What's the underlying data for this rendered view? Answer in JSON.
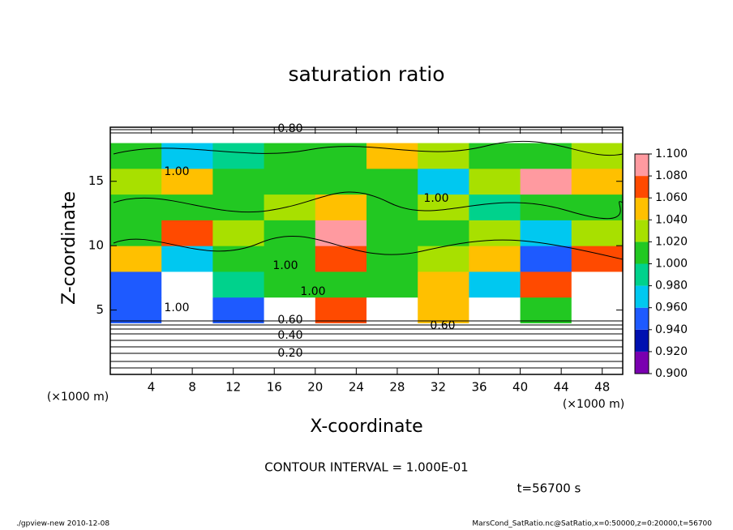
{
  "chart_data": {
    "type": "heatmap",
    "title": "saturation ratio",
    "xlabel": "X-coordinate",
    "ylabel": "Z-coordinate",
    "x_unit": "(×1000 m)",
    "xlim": [
      0,
      50
    ],
    "ylim": [
      0,
      19.2
    ],
    "xticks": [
      4,
      8,
      12,
      16,
      20,
      24,
      28,
      32,
      36,
      40,
      44,
      48
    ],
    "yticks": [
      5,
      10,
      15
    ],
    "x_edges": [
      0,
      5,
      10,
      15,
      20,
      25,
      30,
      35,
      40,
      45,
      50
    ],
    "z_edges": [
      0,
      2,
      4,
      6,
      8,
      10,
      12,
      14,
      16,
      18,
      20
    ],
    "values": [
      [
        0.2,
        0.2,
        0.2,
        0.2,
        0.2,
        0.2,
        0.2,
        0.2,
        0.2,
        0.2
      ],
      [
        0.5,
        0.5,
        0.5,
        0.5,
        0.5,
        0.5,
        0.5,
        0.5,
        0.5,
        0.5
      ],
      [
        0.95,
        1.12,
        0.94,
        1.12,
        1.06,
        1.12,
        1.04,
        1.12,
        1.0,
        1.12
      ],
      [
        0.94,
        1.12,
        0.98,
        1.0,
        1.0,
        1.0,
        1.04,
        0.96,
        1.06,
        1.12
      ],
      [
        1.04,
        0.96,
        1.0,
        1.0,
        1.06,
        1.0,
        1.02,
        1.04,
        0.94,
        1.06
      ],
      [
        1.0,
        1.06,
        1.02,
        1.0,
        1.08,
        1.0,
        1.0,
        1.02,
        0.96,
        1.02
      ],
      [
        1.0,
        1.0,
        1.0,
        1.02,
        1.04,
        1.0,
        1.02,
        0.98,
        1.0,
        1.0
      ],
      [
        1.02,
        1.04,
        1.0,
        1.0,
        1.0,
        1.0,
        0.96,
        1.02,
        1.08,
        1.04
      ],
      [
        1.0,
        0.96,
        0.98,
        1.0,
        1.0,
        1.04,
        1.02,
        1.0,
        1.0,
        1.02
      ],
      [
        0.8,
        0.8,
        0.8,
        0.8,
        0.8,
        0.8,
        0.8,
        0.8,
        0.8,
        0.8
      ]
    ],
    "colorbar": {
      "ticks": [
        {
          "value": 0.9,
          "label": "0.900"
        },
        {
          "value": 0.92,
          "label": "0.920"
        },
        {
          "value": 0.94,
          "label": "0.940"
        },
        {
          "value": 0.96,
          "label": "0.960"
        },
        {
          "value": 0.98,
          "label": "0.980"
        },
        {
          "value": 1.0,
          "label": "1.000"
        },
        {
          "value": 1.02,
          "label": "1.020"
        },
        {
          "value": 1.04,
          "label": "1.040"
        },
        {
          "value": 1.06,
          "label": "1.060"
        },
        {
          "value": 1.08,
          "label": "1.080"
        },
        {
          "value": 1.1,
          "label": "1.100"
        }
      ],
      "colors": [
        "#7a00b0",
        "#0010b0",
        "#1e5aff",
        "#00c8f0",
        "#00d28c",
        "#22c822",
        "#a8e000",
        "#ffc000",
        "#ff4a00",
        "#ff9aa0"
      ]
    },
    "contour_labels": [
      "0.80",
      "1.00",
      "1.00",
      "1.00",
      "1.00",
      "1.00",
      "0.60",
      "0.60",
      "0.40",
      "0.20"
    ],
    "contour_interval": "CONTOUR INTERVAL = 1.000E-01",
    "time_label": "t=56700 s",
    "footer_left": "./gpview-new  2010-12-08",
    "footer_right": "MarsCond_SatRatio.nc@SatRatio,x=0:50000,z=0:20000,t=56700"
  }
}
